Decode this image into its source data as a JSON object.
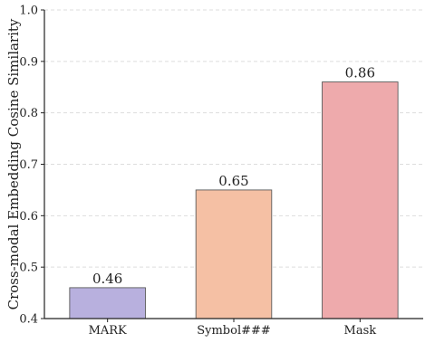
{
  "chart_data": {
    "type": "bar",
    "categories": [
      "MARK",
      "Symbol###",
      "Mask"
    ],
    "values": [
      0.46,
      0.65,
      0.86
    ],
    "data_labels": [
      "0.46",
      "0.65",
      "0.86"
    ],
    "colors": [
      "#b8b0de",
      "#f5c0a4",
      "#eeaaac"
    ],
    "title": "",
    "xlabel": "",
    "ylabel": "Cross-modal Embedding Cosine Similarity",
    "ylim": [
      0.4,
      1.0
    ],
    "yticks": [
      "0.4",
      "0.5",
      "0.6",
      "0.7",
      "0.8",
      "0.9",
      "1.0"
    ],
    "grid": "horizontal dashed",
    "legend": "none"
  }
}
